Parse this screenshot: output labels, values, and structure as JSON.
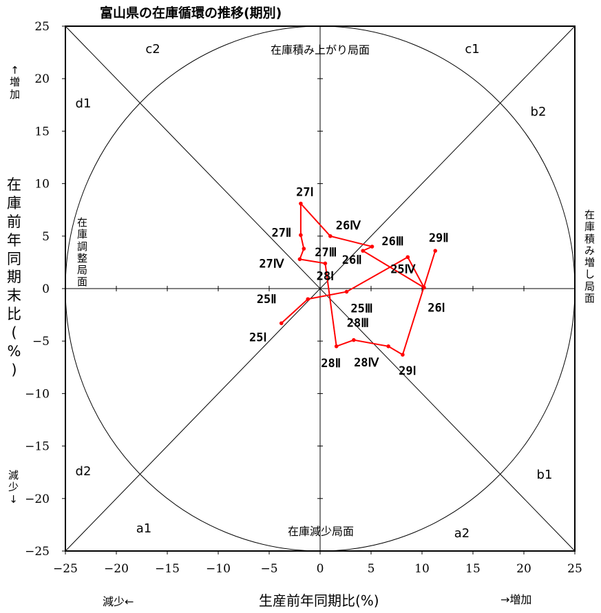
{
  "chart_data": {
    "type": "line",
    "title": "富山県の在庫循環の推移(期別)",
    "xlabel": "生産前年同期比(%)",
    "ylabel": "在庫前年同期末比(%)",
    "xlim": [
      -25,
      25
    ],
    "ylim": [
      -25,
      25
    ],
    "xticks": [
      "−25",
      "−20",
      "−15",
      "−10",
      "−5",
      "0",
      "5",
      "10",
      "15",
      "20",
      "25"
    ],
    "yticks": [
      "25",
      "20",
      "15",
      "10",
      "5",
      "0",
      "−5",
      "−10",
      "−15",
      "−20",
      "−25"
    ],
    "series": [
      {
        "color": "#ff0000",
        "points": [
          {
            "label": "25Ⅰ",
            "x": -3.8,
            "y": -3.3
          },
          {
            "label": "25Ⅱ",
            "x": -1.2,
            "y": -1.0
          },
          {
            "label": "25Ⅲ",
            "x": 2.6,
            "y": -0.3
          },
          {
            "label": "25Ⅳ",
            "x": 8.6,
            "y": 3.0
          },
          {
            "label": "26Ⅰ",
            "x": 10.2,
            "y": 0.1
          },
          {
            "label": "26Ⅱ",
            "x": 4.2,
            "y": 3.6
          },
          {
            "label": "26Ⅲ",
            "x": 5.1,
            "y": 4.0
          },
          {
            "label": "26Ⅳ",
            "x": 1.0,
            "y": 5.0
          },
          {
            "label": "27Ⅰ",
            "x": -1.9,
            "y": 8.1
          },
          {
            "label": "27Ⅱ",
            "x": -1.9,
            "y": 5.1
          },
          {
            "label": "27Ⅲ",
            "x": -1.6,
            "y": 3.8
          },
          {
            "label": "27Ⅳ",
            "x": -2.0,
            "y": 2.8
          },
          {
            "label": "28Ⅰ",
            "x": 0.5,
            "y": 2.4
          },
          {
            "label": "28Ⅱ",
            "x": 1.6,
            "y": -5.5
          },
          {
            "label": "28Ⅲ",
            "x": 3.3,
            "y": -4.9
          },
          {
            "label": "28Ⅳ",
            "x": 6.7,
            "y": -5.5
          },
          {
            "label": "29Ⅰ",
            "x": 8.1,
            "y": -6.3
          },
          {
            "label": "29Ⅱ",
            "x": 11.3,
            "y": 3.6
          }
        ]
      }
    ],
    "quadrant_labels": {
      "c2": "c2",
      "c1": "c1",
      "d1": "d1",
      "b2": "b2",
      "d2": "d2",
      "b1": "b1",
      "a1": "a1",
      "a2": "a2"
    },
    "phase_labels": {
      "top": "在庫積み上がり局面",
      "bottom": "在庫減少局面",
      "left": "在庫調整局面",
      "right": "在庫積み増し局面"
    }
  },
  "axis_notes": {
    "y_increase": "↑増加",
    "y_decrease": "減少↓",
    "x_decrease": "減少←",
    "x_increase": "→増加"
  }
}
